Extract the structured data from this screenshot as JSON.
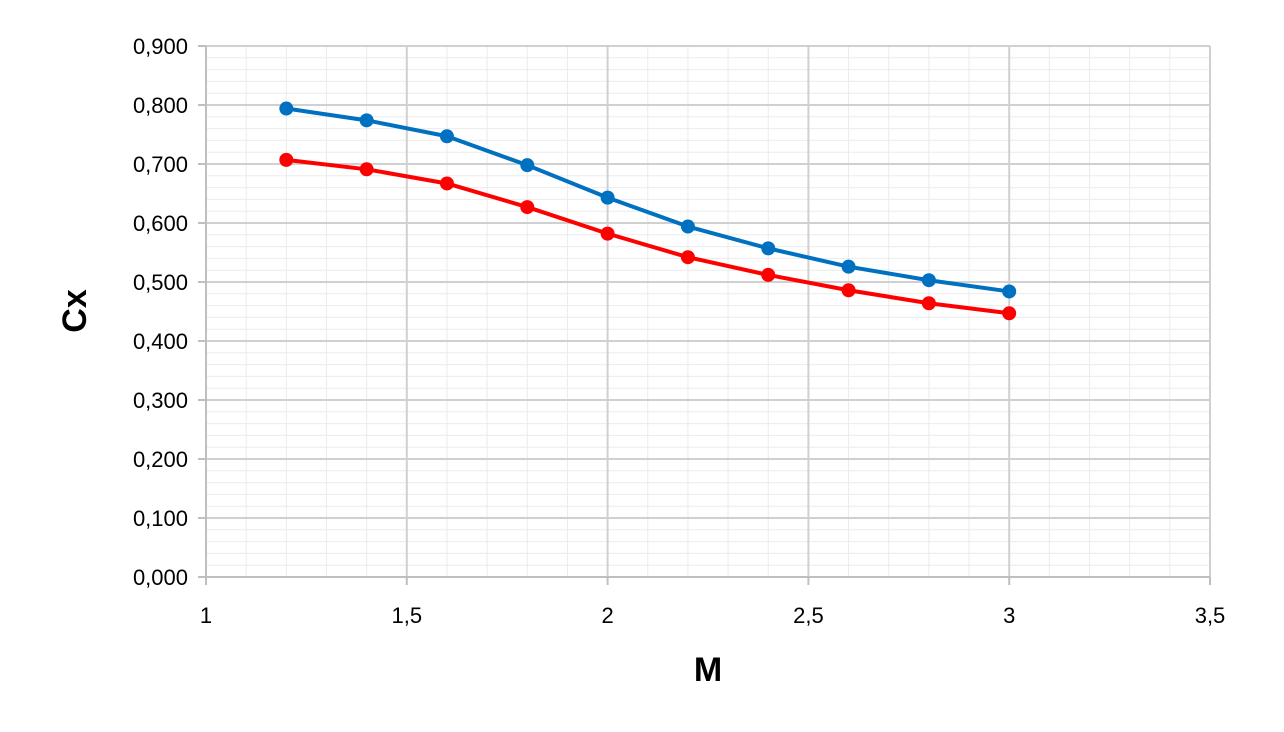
{
  "chart_data": {
    "type": "line",
    "title": "",
    "xlabel": "M",
    "ylabel": "Cx",
    "xlim": [
      1,
      3.5
    ],
    "ylim": [
      0,
      0.9
    ],
    "x_ticks": [
      1,
      1.5,
      2,
      2.5,
      3,
      3.5
    ],
    "x_tick_labels": [
      "1",
      "1,5",
      "2",
      "2,5",
      "3",
      "3,5"
    ],
    "y_ticks": [
      0,
      0.1,
      0.2,
      0.3,
      0.4,
      0.5,
      0.6,
      0.7,
      0.8,
      0.9
    ],
    "y_tick_labels": [
      "0,000",
      "0,100",
      "0,200",
      "0,300",
      "0,400",
      "0,500",
      "0,600",
      "0,700",
      "0,800",
      "0,900"
    ],
    "grid": true,
    "minor_grid": true,
    "legend": "none",
    "x": [
      1.2,
      1.4,
      1.6,
      1.8,
      2.0,
      2.2,
      2.4,
      2.6,
      2.8,
      3.0
    ],
    "series": [
      {
        "color": "#0070C0",
        "values": [
          0.794,
          0.774,
          0.747,
          0.698,
          0.643,
          0.594,
          0.557,
          0.526,
          0.503,
          0.484
        ]
      },
      {
        "color": "#FF0000",
        "values": [
          0.707,
          0.691,
          0.667,
          0.627,
          0.582,
          0.542,
          0.512,
          0.486,
          0.464,
          0.447
        ]
      }
    ]
  }
}
